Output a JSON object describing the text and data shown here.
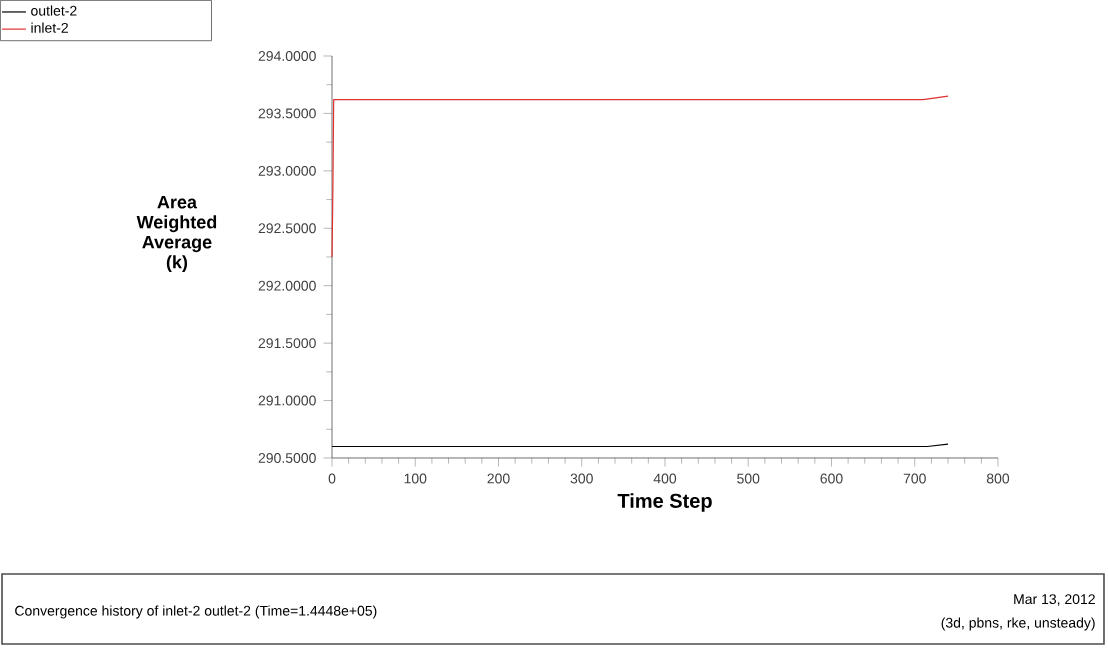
{
  "chart_data": {
    "type": "line",
    "xlabel": "Time Step",
    "ylabel": "Area Weighted Average (k)",
    "xlim": [
      0,
      800
    ],
    "ylim": [
      290.5,
      294.0
    ],
    "xticks": [
      0,
      100,
      200,
      300,
      400,
      500,
      600,
      700,
      800
    ],
    "yticks": [
      {
        "value": 290.5,
        "label": "290.5000"
      },
      {
        "value": 291.0,
        "label": "291.0000"
      },
      {
        "value": 291.5,
        "label": "291.5000"
      },
      {
        "value": 292.0,
        "label": "292.0000"
      },
      {
        "value": 292.5,
        "label": "292.5000"
      },
      {
        "value": 293.0,
        "label": "293.0000"
      },
      {
        "value": 293.5,
        "label": "293.5000"
      },
      {
        "value": 294.0,
        "label": "294.0000"
      }
    ],
    "legend": "top left",
    "grid": false,
    "series": [
      {
        "name": "outlet-2",
        "color": "#000000",
        "x": [
          0,
          715,
          740
        ],
        "values": [
          290.6,
          290.6,
          290.62
        ]
      },
      {
        "name": "inlet-2",
        "color": "#e03030",
        "x": [
          0,
          1,
          2,
          710,
          740
        ],
        "values": [
          292.25,
          292.8,
          293.62,
          293.62,
          293.65
        ]
      }
    ],
    "annotations": [
      "Convergence history of inlet-2 outlet-2  (Time=1.4448e+05)",
      "Mar 13, 2012",
      "(3d, pbns, rke, unsteady)"
    ]
  }
}
